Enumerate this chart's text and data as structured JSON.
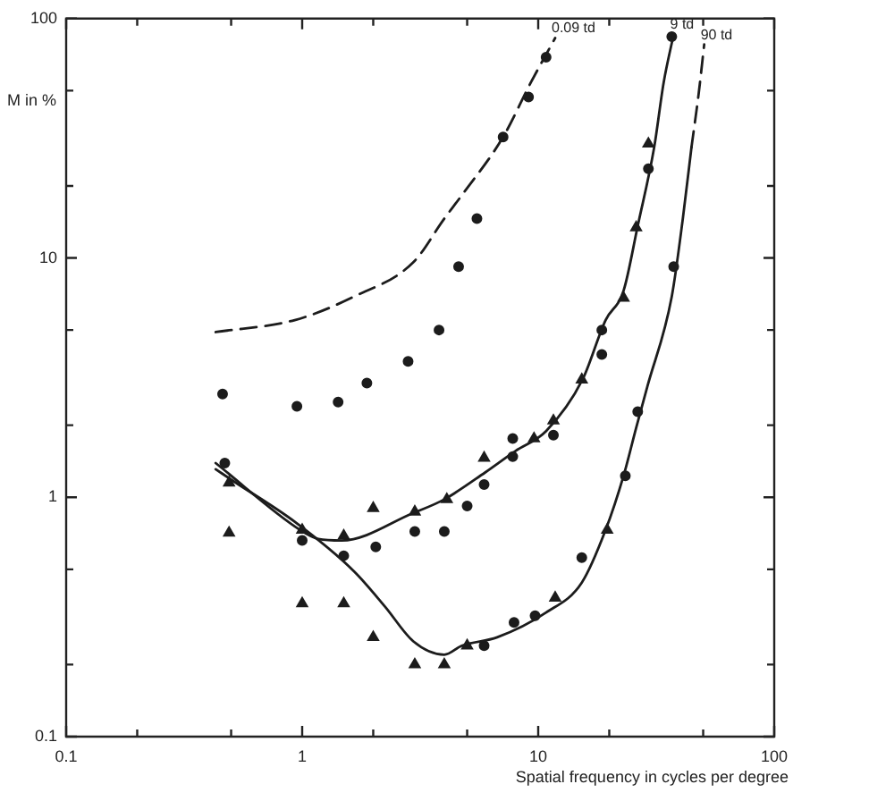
{
  "chart_data": {
    "type": "scatter",
    "xlabel": "Spatial frequency in cycles per degree",
    "ylabel": "M in %",
    "log": "xy",
    "grid": false,
    "legend": false,
    "xlim": [
      0.1,
      100
    ],
    "ylim": [
      0.1,
      100
    ],
    "xticks": [
      0.1,
      {
        "value": 0.2,
        "label": null
      },
      {
        "value": 0.5,
        "label": null
      },
      1,
      {
        "value": 2,
        "label": null
      },
      {
        "value": 5,
        "label": null
      },
      10,
      {
        "value": 20,
        "label": null
      },
      {
        "value": 50,
        "label": null
      },
      100
    ],
    "yticks": [
      0.1,
      {
        "value": 0.2,
        "label": null
      },
      {
        "value": 0.5,
        "label": null
      },
      1,
      {
        "value": 2,
        "label": null
      },
      {
        "value": 5,
        "label": null
      },
      10,
      {
        "value": 20,
        "label": null
      },
      {
        "value": 50,
        "label": null
      },
      100
    ],
    "annotations": [
      {
        "text": "0.09 td",
        "x": 11.8,
        "y": 83
      },
      {
        "text": "9 td",
        "x": 37.5,
        "y": 86
      },
      {
        "text": "90 td",
        "x": 50.5,
        "y": 78
      }
    ],
    "series": [
      {
        "type": "line",
        "color": "#1c1c1c",
        "line_style": "dashed",
        "marker": "none",
        "x": [
          0.43,
          0.93,
          1.66,
          2.96,
          4,
          4.75,
          7.1,
          9.3,
          11.8
        ],
        "values": [
          4.9,
          5.5,
          6.9,
          9.6,
          14.6,
          18.3,
          32,
          54,
          83
        ]
      },
      {
        "type": "line",
        "color": "#1c1c1c",
        "line_style": "solid",
        "marker": "none",
        "x": [
          0.43,
          0.98,
          1.17,
          1.47,
          2.96,
          4,
          5.96,
          8,
          10.8,
          15.4,
          19.3,
          23,
          26.4,
          31,
          34,
          37.5
        ],
        "values": [
          1.39,
          0.73,
          0.67,
          0.66,
          0.86,
          0.98,
          1.27,
          1.56,
          1.89,
          3.1,
          5.5,
          7.3,
          13.6,
          29,
          54,
          86
        ]
      },
      {
        "type": "line",
        "color": "#1c1c1c",
        "line_style": "solid",
        "marker": "none",
        "x": [
          0.43,
          0.51,
          0.93,
          1.66,
          2.24,
          2.96,
          4,
          4.75,
          6.7,
          10.8,
          15.3,
          19.3,
          23,
          26,
          29,
          36.8,
          41,
          44.6
        ],
        "values": [
          1.31,
          1.17,
          0.79,
          0.49,
          0.35,
          0.25,
          0.22,
          0.24,
          0.26,
          0.33,
          0.44,
          0.73,
          1.23,
          1.95,
          2.9,
          6.9,
          14.6,
          29
        ]
      },
      {
        "type": "line",
        "color": "#1c1c1c",
        "line_style": "dashed",
        "marker": "none",
        "x": [
          44.6,
          47.9,
          50.5
        ],
        "values": [
          29,
          49,
          78
        ]
      },
      {
        "color": "#1c1c1c",
        "marker": "circle",
        "x": [
          0.46,
          0.95,
          1.42,
          1.88,
          2.81,
          3.8,
          4.6,
          5.5,
          7.1,
          9.1,
          10.8
        ],
        "values": [
          2.7,
          2.4,
          2.5,
          3,
          3.7,
          5,
          9.2,
          14.6,
          32,
          47,
          69
        ]
      },
      {
        "color": "#1c1c1c",
        "marker": "circle",
        "x": [
          0.47,
          1,
          1.5,
          2.05,
          3,
          4,
          5,
          5.9,
          7.8,
          7.8,
          11.6,
          18.6,
          18.6,
          29.3,
          36.8
        ],
        "values": [
          1.39,
          0.66,
          0.57,
          0.62,
          0.72,
          0.72,
          0.92,
          1.13,
          1.48,
          1.76,
          1.82,
          3.95,
          5,
          23.6,
          84
        ]
      },
      {
        "color": "#1c1c1c",
        "marker": "triangle",
        "x": [
          1,
          1.5,
          2,
          3,
          4.1,
          5.9,
          9.6,
          11.6,
          15.3,
          23,
          26,
          29.3
        ],
        "values": [
          0.73,
          0.69,
          0.9,
          0.87,
          0.98,
          1.46,
          1.76,
          2.09,
          3.1,
          6.8,
          13.4,
          30
        ]
      },
      {
        "color": "#1c1c1c",
        "marker": "triangle",
        "x": [
          0.49,
          0.49,
          1,
          1.5,
          2,
          3,
          4,
          5,
          11.8,
          19.6
        ],
        "values": [
          1.15,
          0.71,
          0.36,
          0.36,
          0.26,
          0.2,
          0.2,
          0.24,
          0.38,
          0.73
        ]
      },
      {
        "color": "#1c1c1c",
        "marker": "circle",
        "x": [
          5.9,
          7.9,
          9.7,
          15.3,
          23.4,
          26.4,
          37.5
        ],
        "values": [
          0.24,
          0.3,
          0.32,
          0.56,
          1.23,
          2.28,
          9.2
        ]
      }
    ]
  }
}
